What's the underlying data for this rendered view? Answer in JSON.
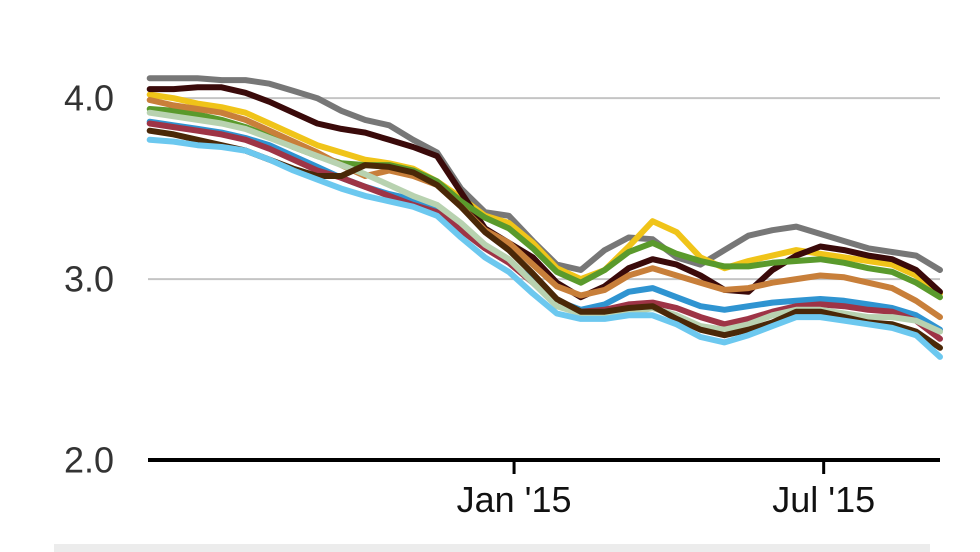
{
  "chart_data": {
    "type": "line",
    "title": "",
    "xlabel": "",
    "ylabel": "",
    "ylim": [
      2.0,
      4.2
    ],
    "yticks": [
      2.0,
      3.0,
      4.0
    ],
    "ytick_labels": [
      "2.0",
      "3.0",
      "4.0"
    ],
    "x_range": [
      "2014-06-01",
      "2015-09-07"
    ],
    "xticks": [
      "2015-01-01",
      "2015-07-01"
    ],
    "xtick_labels": [
      "Jan '15",
      "Jul '15"
    ],
    "grid": true,
    "x": [
      "2014-06-02",
      "2014-06-16",
      "2014-06-30",
      "2014-07-14",
      "2014-07-28",
      "2014-08-11",
      "2014-08-25",
      "2014-09-08",
      "2014-09-22",
      "2014-10-06",
      "2014-10-20",
      "2014-11-03",
      "2014-11-17",
      "2014-12-01",
      "2014-12-15",
      "2014-12-29",
      "2015-01-12",
      "2015-01-26",
      "2015-02-09",
      "2015-02-23",
      "2015-03-09",
      "2015-03-23",
      "2015-04-06",
      "2015-04-20",
      "2015-05-04",
      "2015-05-18",
      "2015-06-01",
      "2015-06-15",
      "2015-06-29",
      "2015-07-13",
      "2015-07-27",
      "2015-08-10",
      "2015-08-24",
      "2015-09-07"
    ],
    "series": [
      {
        "color": "#777777",
        "values": [
          4.11,
          4.11,
          4.11,
          4.1,
          4.1,
          4.08,
          4.04,
          4.0,
          3.93,
          3.88,
          3.85,
          3.77,
          3.7,
          3.5,
          3.37,
          3.35,
          3.21,
          3.08,
          3.05,
          3.16,
          3.23,
          3.22,
          3.12,
          3.08,
          3.16,
          3.24,
          3.27,
          3.29,
          3.25,
          3.21,
          3.17,
          3.15,
          3.13,
          3.05
        ]
      },
      {
        "color": "#f0c419",
        "values": [
          4.02,
          4.0,
          3.97,
          3.95,
          3.92,
          3.86,
          3.8,
          3.74,
          3.7,
          3.66,
          3.64,
          3.61,
          3.54,
          3.45,
          3.35,
          3.31,
          3.2,
          3.06,
          3.0,
          3.05,
          3.18,
          3.32,
          3.26,
          3.12,
          3.06,
          3.1,
          3.13,
          3.16,
          3.14,
          3.12,
          3.1,
          3.08,
          3.02,
          2.92
        ]
      },
      {
        "color": "#3a0a0a",
        "values": [
          4.05,
          4.05,
          4.06,
          4.06,
          4.03,
          3.98,
          3.92,
          3.86,
          3.83,
          3.81,
          3.77,
          3.73,
          3.68,
          3.48,
          3.28,
          3.2,
          3.12,
          2.98,
          2.9,
          2.96,
          3.06,
          3.11,
          3.08,
          3.02,
          2.94,
          2.93,
          3.05,
          3.13,
          3.18,
          3.16,
          3.13,
          3.11,
          3.05,
          2.93
        ]
      },
      {
        "color": "#5a9a2c",
        "values": [
          3.94,
          3.93,
          3.91,
          3.88,
          3.84,
          3.79,
          3.73,
          3.68,
          3.64,
          3.63,
          3.63,
          3.6,
          3.54,
          3.43,
          3.34,
          3.28,
          3.17,
          3.04,
          2.98,
          3.05,
          3.15,
          3.2,
          3.14,
          3.1,
          3.07,
          3.07,
          3.09,
          3.1,
          3.11,
          3.09,
          3.06,
          3.04,
          2.98,
          2.9
        ]
      },
      {
        "color": "#c87f3a",
        "values": [
          3.99,
          3.96,
          3.94,
          3.92,
          3.88,
          3.82,
          3.76,
          3.7,
          3.63,
          3.57,
          3.6,
          3.57,
          3.52,
          3.4,
          3.27,
          3.2,
          3.08,
          2.96,
          2.91,
          2.94,
          3.02,
          3.06,
          3.02,
          2.98,
          2.94,
          2.95,
          2.98,
          3.0,
          3.02,
          3.01,
          2.98,
          2.95,
          2.88,
          2.79
        ]
      },
      {
        "color": "#2f94d1",
        "values": [
          3.87,
          3.85,
          3.83,
          3.81,
          3.78,
          3.74,
          3.68,
          3.62,
          3.56,
          3.51,
          3.47,
          3.44,
          3.38,
          3.28,
          3.18,
          3.1,
          2.99,
          2.88,
          2.83,
          2.86,
          2.93,
          2.95,
          2.9,
          2.85,
          2.83,
          2.85,
          2.87,
          2.88,
          2.89,
          2.88,
          2.86,
          2.84,
          2.8,
          2.72
        ]
      },
      {
        "color": "#9e3446",
        "values": [
          3.86,
          3.84,
          3.82,
          3.8,
          3.77,
          3.72,
          3.66,
          3.6,
          3.56,
          3.51,
          3.46,
          3.41,
          3.37,
          3.27,
          3.17,
          3.09,
          2.98,
          2.86,
          2.82,
          2.83,
          2.86,
          2.87,
          2.84,
          2.79,
          2.75,
          2.78,
          2.82,
          2.85,
          2.86,
          2.85,
          2.83,
          2.82,
          2.77,
          2.67
        ]
      },
      {
        "color": "#b8d2b0",
        "values": [
          3.92,
          3.9,
          3.88,
          3.86,
          3.83,
          3.78,
          3.73,
          3.68,
          3.63,
          3.58,
          3.52,
          3.46,
          3.41,
          3.31,
          3.19,
          3.11,
          2.98,
          2.85,
          2.81,
          2.81,
          2.81,
          2.84,
          2.8,
          2.74,
          2.72,
          2.75,
          2.8,
          2.83,
          2.83,
          2.81,
          2.79,
          2.79,
          2.77,
          2.71
        ]
      },
      {
        "color": "#4a2808",
        "values": [
          3.82,
          3.8,
          3.77,
          3.74,
          3.71,
          3.66,
          3.61,
          3.57,
          3.57,
          3.63,
          3.62,
          3.59,
          3.52,
          3.4,
          3.26,
          3.16,
          3.03,
          2.89,
          2.82,
          2.82,
          2.84,
          2.85,
          2.78,
          2.72,
          2.69,
          2.72,
          2.76,
          2.82,
          2.82,
          2.79,
          2.76,
          2.75,
          2.71,
          2.62
        ]
      },
      {
        "color": "#6cc8ef",
        "values": [
          3.77,
          3.76,
          3.74,
          3.73,
          3.71,
          3.66,
          3.6,
          3.55,
          3.5,
          3.46,
          3.43,
          3.4,
          3.35,
          3.23,
          3.12,
          3.04,
          2.92,
          2.81,
          2.78,
          2.78,
          2.8,
          2.8,
          2.75,
          2.68,
          2.65,
          2.69,
          2.74,
          2.79,
          2.79,
          2.77,
          2.75,
          2.73,
          2.69,
          2.57
        ]
      }
    ]
  }
}
